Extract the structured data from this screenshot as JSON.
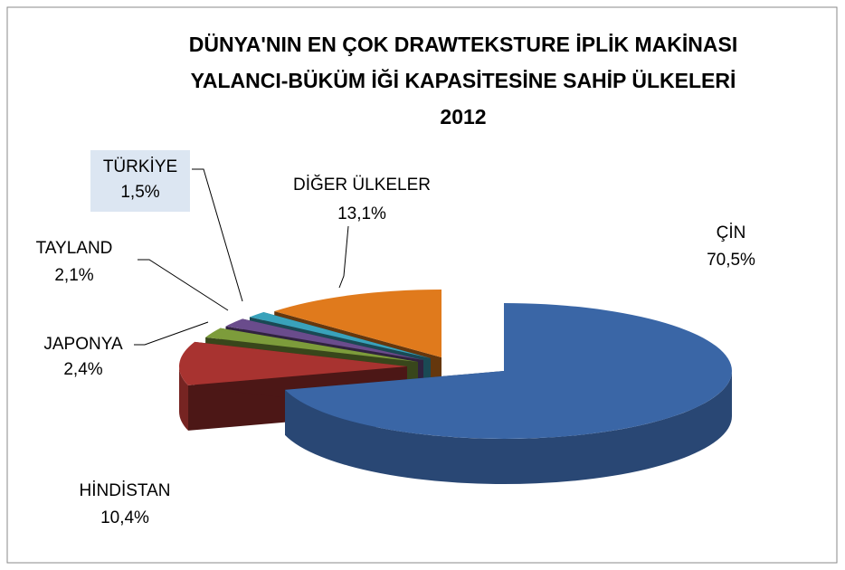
{
  "chart_data": {
    "type": "pie3d",
    "title": [
      "DÜNYA'NIN EN ÇOK DRAWTEKSTURE İPLİK MAKİNASI",
      "YALANCI-BÜKÜM İĞİ KAPASİTESİNE SAHİP ÜLKELERİ",
      "2012"
    ],
    "categories": [
      "ÇİN",
      "HİNDİSTAN",
      "JAPONYA",
      "TAYLAND",
      "TÜRKİYE",
      "DİĞER ÜLKELER"
    ],
    "values": [
      70.5,
      10.4,
      2.4,
      2.1,
      1.5,
      13.1
    ],
    "value_labels": [
      "70,5%",
      "10,4%",
      "2,4%",
      "2,1%",
      "1,5%",
      "13,1%"
    ],
    "colors": [
      "#3a66a6",
      "#a83330",
      "#7d9c3b",
      "#6a4c8c",
      "#39a2bb",
      "#e07a1c"
    ]
  }
}
